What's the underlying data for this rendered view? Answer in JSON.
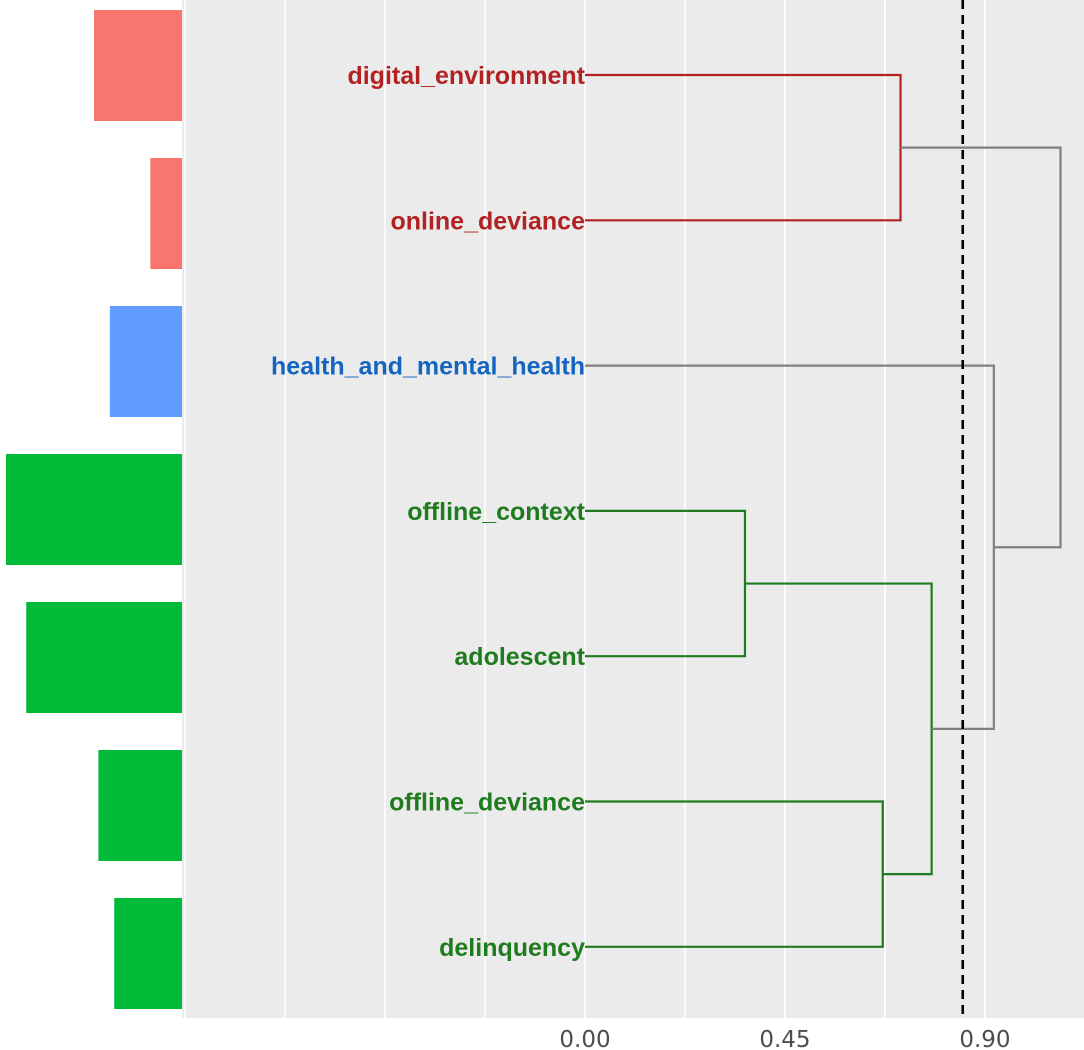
{
  "chart_data": {
    "type": "dendrogram",
    "title": "",
    "xlabel": "",
    "ylabel": "",
    "x_axis": {
      "ticks": [
        0.0,
        0.45,
        0.9
      ],
      "tick_labels": [
        "0.00",
        "0.45",
        "0.90"
      ],
      "range": [
        -0.9,
        1.1
      ],
      "grid": true
    },
    "cut_height": 0.85,
    "leaves": [
      {
        "label": "digital_environment",
        "cluster": "red",
        "bar_value": 1.0
      },
      {
        "label": "online_deviance",
        "cluster": "red",
        "bar_value": 0.36
      },
      {
        "label": "health_and_mental_health",
        "cluster": "blue",
        "bar_value": 0.82
      },
      {
        "label": "offline_context",
        "cluster": "green",
        "bar_value": 2.0
      },
      {
        "label": "adolescent",
        "cluster": "green",
        "bar_value": 1.77
      },
      {
        "label": "offline_deviance",
        "cluster": "green",
        "bar_value": 0.95
      },
      {
        "label": "delinquency",
        "cluster": "green",
        "bar_value": 0.77
      }
    ],
    "merges": [
      {
        "left": 0,
        "right": 1,
        "height": 0.71,
        "cluster": "red"
      },
      {
        "left": 3,
        "right": 4,
        "height": 0.36,
        "cluster": "green"
      },
      {
        "left": 5,
        "right": 6,
        "height": 0.67,
        "cluster": "green"
      },
      {
        "left": 8,
        "right": 9,
        "height": 0.78,
        "cluster": "green"
      },
      {
        "left": 2,
        "right": 10,
        "height": 0.92,
        "cluster": "none"
      },
      {
        "left": 7,
        "right": 11,
        "height": 1.07,
        "cluster": "none"
      }
    ],
    "colors": {
      "red_bar": "#f8766d",
      "blue_bar": "#619cff",
      "green_bar": "#00ba38",
      "red_label": "#b22222",
      "blue_label": "#1565c0",
      "green_label": "#1e7b1e",
      "red_line": "#b22222",
      "green_line": "#1e7b1e",
      "none_line": "#808080",
      "panel": "#ebebeb",
      "grid": "#ffffff",
      "cut_line": "#000000"
    }
  }
}
